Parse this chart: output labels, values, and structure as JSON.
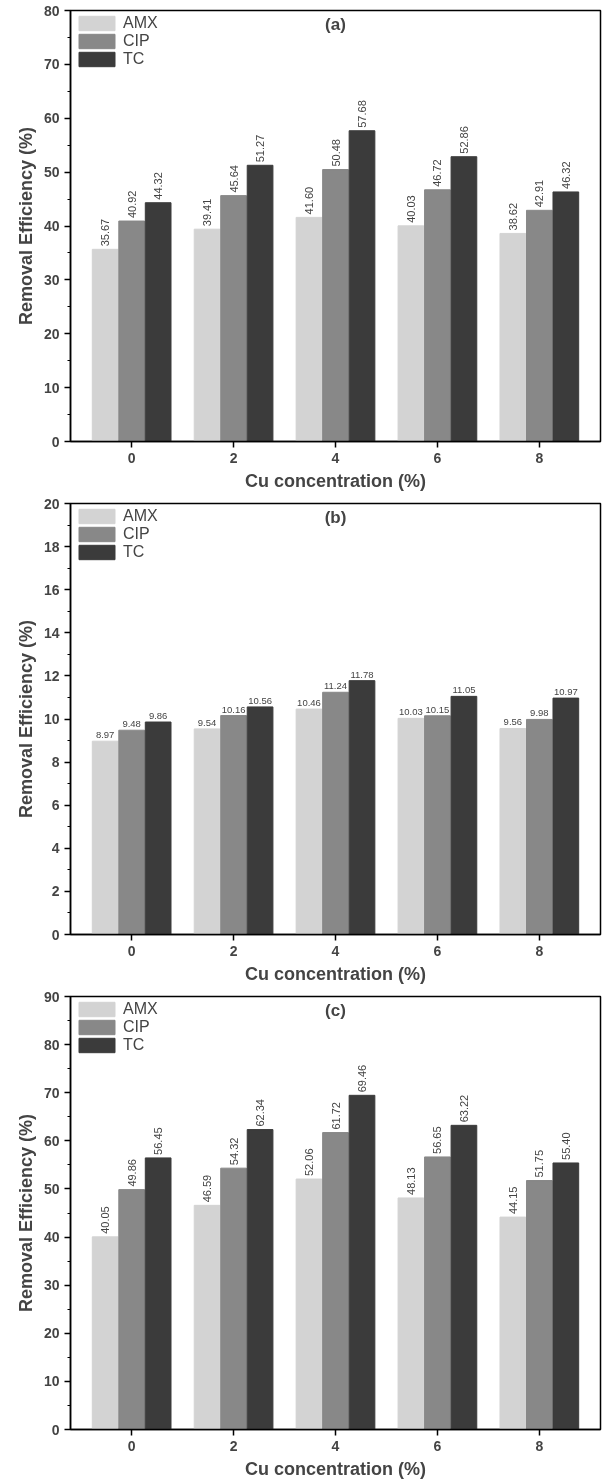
{
  "chart_data": [
    {
      "type": "bar",
      "annotations": [
        "(a)"
      ],
      "xlabel": "Cu concentration (%)",
      "ylabel": "Removal Efficiency (%)",
      "categories": [
        "0",
        "2",
        "4",
        "6",
        "8"
      ],
      "ylim": [
        0,
        80
      ],
      "yticks": [
        0,
        10,
        20,
        30,
        40,
        50,
        60,
        70,
        80
      ],
      "grid": false,
      "legend": "top left",
      "series": [
        {
          "name": "AMX",
          "color": "#d3d3d3",
          "values": [
            35.67,
            39.41,
            41.6,
            40.03,
            38.62
          ],
          "value_labels": [
            "35.67",
            "39.41",
            "41.60",
            "40.03",
            "38.62"
          ]
        },
        {
          "name": "CIP",
          "color": "#888888",
          "values": [
            40.92,
            45.64,
            50.48,
            46.72,
            42.91
          ],
          "value_labels": [
            "40.92",
            "45.64",
            "50.48",
            "46.72",
            "42.91"
          ]
        },
        {
          "name": "TC",
          "color": "#3b3b3b",
          "values": [
            44.32,
            51.27,
            57.68,
            52.86,
            46.32
          ],
          "value_labels": [
            "44.32",
            "51.27",
            "57.68",
            "52.86",
            "46.32"
          ]
        }
      ]
    },
    {
      "type": "bar",
      "annotations": [
        "(b)"
      ],
      "xlabel": "Cu concentration (%)",
      "ylabel": "Removal Efficiency (%)",
      "categories": [
        "0",
        "2",
        "4",
        "6",
        "8"
      ],
      "ylim": [
        0,
        20
      ],
      "yticks": [
        0,
        2,
        4,
        6,
        8,
        10,
        12,
        14,
        16,
        18,
        20
      ],
      "grid": false,
      "legend": "top left",
      "series": [
        {
          "name": "AMX",
          "color": "#d3d3d3",
          "values": [
            8.97,
            9.54,
            10.46,
            10.03,
            9.56
          ],
          "value_labels": [
            "8.97",
            "9.54",
            "10.46",
            "10.03",
            "9.56"
          ]
        },
        {
          "name": "CIP",
          "color": "#888888",
          "values": [
            9.48,
            10.16,
            11.24,
            10.15,
            9.98
          ],
          "value_labels": [
            "9.48",
            "10.16",
            "11.24",
            "10.15",
            "9.98"
          ]
        },
        {
          "name": "TC",
          "color": "#3b3b3b",
          "values": [
            9.86,
            10.56,
            11.78,
            11.05,
            10.97
          ],
          "value_labels": [
            "9.86",
            "10.56",
            "11.78",
            "11.05",
            "10.97"
          ]
        }
      ]
    },
    {
      "type": "bar",
      "annotations": [
        "(c)"
      ],
      "xlabel": "Cu concentration (%)",
      "ylabel": "Removal Efficiency (%)",
      "categories": [
        "0",
        "2",
        "4",
        "6",
        "8"
      ],
      "ylim": [
        0,
        90
      ],
      "yticks": [
        0,
        10,
        20,
        30,
        40,
        50,
        60,
        70,
        80,
        90
      ],
      "grid": false,
      "legend": "top left",
      "series": [
        {
          "name": "AMX",
          "color": "#d3d3d3",
          "values": [
            40.05,
            46.59,
            52.06,
            48.13,
            44.15
          ],
          "value_labels": [
            "40.05",
            "46.59",
            "52.06",
            "48.13",
            "44.15"
          ]
        },
        {
          "name": "CIP",
          "color": "#888888",
          "values": [
            49.86,
            54.32,
            61.72,
            56.65,
            51.75
          ],
          "value_labels": [
            "49.86",
            "54.32",
            "61.72",
            "56.65",
            "51.75"
          ]
        },
        {
          "name": "TC",
          "color": "#3b3b3b",
          "values": [
            56.45,
            62.34,
            69.46,
            63.22,
            55.4
          ],
          "value_labels": [
            "56.45",
            "62.34",
            "69.46",
            "63.22",
            "55.40"
          ]
        }
      ]
    }
  ]
}
